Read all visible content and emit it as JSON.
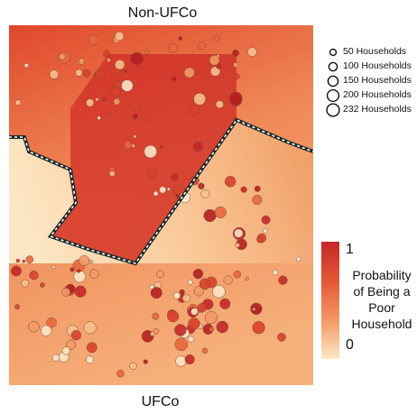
{
  "chart_data": {
    "type": "scatter",
    "region_top_label": "Non-UFCo",
    "region_bottom_label": "UFCo",
    "size_legend": [
      {
        "label": "50 Households",
        "value": 50
      },
      {
        "label": "100 Households",
        "value": 100
      },
      {
        "label": "150 Households",
        "value": 150
      },
      {
        "label": "200 Households",
        "value": 200
      },
      {
        "label": "232 Households",
        "value": 232
      }
    ],
    "color_scale": {
      "title_lines": [
        "Probability",
        "of Being a",
        "Poor",
        "Household"
      ],
      "max_label": "1",
      "min_label": "0",
      "range": [
        0,
        1
      ],
      "low_color": "#fde8c6",
      "high_color": "#c62727"
    }
  }
}
